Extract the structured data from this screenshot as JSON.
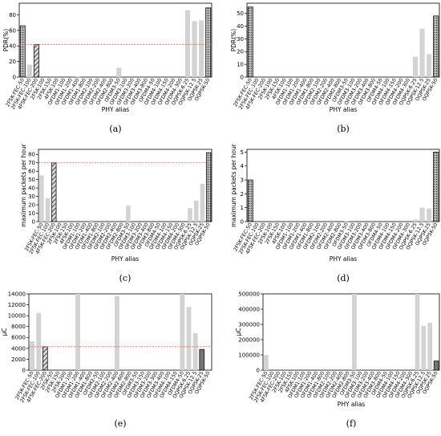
{
  "chart_data": [
    {
      "type": "bar",
      "panel_label": "(a)",
      "xlabel": "PHY alias",
      "ylabel": "PDR(%)",
      "ylim": [
        0,
        95
      ],
      "yticks": [
        0,
        20,
        40,
        60,
        80
      ],
      "yticklabels": [
        "0",
        "20",
        "40",
        "60",
        "80"
      ],
      "exponent_label": "",
      "reference_line": 42,
      "reference_color": "#e8604c",
      "categories": [
        "2FSK-FEC-50",
        "2FSK-FEC-100",
        "4FSK-FEC-200",
        "2FSK-100",
        "2FSK-150",
        "4FSK-100",
        "OFDM1-100",
        "OFDM1-200",
        "OFDM1-400",
        "OFDM1-800",
        "OFDM2-100",
        "OFDM2-200",
        "OFDM2-400",
        "OFDM2-800",
        "OFDM3-50",
        "OFDM3-100",
        "OFDM3-200",
        "OFDM3-400",
        "OFDM3-800",
        "OFDM4-50",
        "OFDM4-100",
        "OFDM4-150",
        "OFDM4-200",
        "OFDM4-300",
        "OQPSK-6.25",
        "OQPSK-12.5",
        "OQPSK-25",
        "OQPSK-50"
      ],
      "values": [
        66,
        16,
        42,
        0,
        0,
        0,
        0,
        0,
        1,
        0,
        0,
        0,
        0,
        0,
        12,
        0,
        0,
        0,
        0,
        0,
        0,
        0,
        0,
        0,
        86,
        72,
        73,
        89
      ],
      "styles": [
        "dots",
        "plain",
        "hatch",
        "plain",
        "plain",
        "plain",
        "plain",
        "plain",
        "plain",
        "plain",
        "plain",
        "plain",
        "plain",
        "plain",
        "plain",
        "plain",
        "plain",
        "plain",
        "plain",
        "plain",
        "plain",
        "plain",
        "plain",
        "plain",
        "plain",
        "plain",
        "plain",
        "dots"
      ]
    },
    {
      "type": "bar",
      "panel_label": "(b)",
      "xlabel": "PHY alias",
      "ylabel": "PDR(%)",
      "ylim": [
        0,
        58
      ],
      "yticks": [
        0,
        10,
        20,
        30,
        40,
        50
      ],
      "yticklabels": [
        "0",
        "10",
        "20",
        "30",
        "40",
        "50"
      ],
      "exponent_label": "",
      "reference_line": null,
      "reference_color": "#e8604c",
      "categories": [
        "2FSK-FEC-50",
        "2FSK-FEC-100",
        "4FSK-FEC-200",
        "2FSK-100",
        "2FSK-150",
        "4FSK-100",
        "OFDM1-100",
        "OFDM1-200",
        "OFDM1-400",
        "OFDM1-800",
        "OFDM2-100",
        "OFDM2-200",
        "OFDM2-400",
        "OFDM2-800",
        "OFDM3-50",
        "OFDM3-100",
        "OFDM3-200",
        "OFDM3-400",
        "OFDM3-800",
        "OFDM4-50",
        "OFDM4-100",
        "OFDM4-150",
        "OFDM4-200",
        "OFDM4-300",
        "OQPSK-6.25",
        "OQPSK-12.5",
        "OQPSK-25",
        "OQPSK-50"
      ],
      "values": [
        55,
        0,
        0,
        0,
        0,
        0,
        0,
        0,
        0,
        0,
        0,
        0,
        0,
        0,
        0,
        0,
        0,
        0,
        0,
        0,
        0,
        0,
        0,
        0,
        16,
        38,
        18,
        48
      ],
      "styles": [
        "dots",
        "plain",
        "plain",
        "plain",
        "plain",
        "plain",
        "plain",
        "plain",
        "plain",
        "plain",
        "plain",
        "plain",
        "plain",
        "plain",
        "plain",
        "plain",
        "plain",
        "plain",
        "plain",
        "plain",
        "plain",
        "plain",
        "plain",
        "plain",
        "plain",
        "plain",
        "plain",
        "dots"
      ]
    },
    {
      "type": "bar",
      "panel_label": "(c)",
      "xlabel": "PHY alias",
      "ylabel": "maximum packets per hour",
      "ylim": [
        0,
        86
      ],
      "yticks": [
        0,
        10,
        20,
        30,
        40,
        50,
        60,
        70,
        80
      ],
      "yticklabels": [
        "0",
        "10",
        "20",
        "30",
        "40",
        "50",
        "60",
        "70",
        "80"
      ],
      "exponent_label": "",
      "reference_line": 70,
      "reference_color": "#e8604c",
      "categories": [
        "2FSK-FEC-50",
        "2FSK-FEC-100",
        "4FSK-FEC-200",
        "2FSK-100",
        "2FSK-150",
        "4FSK-100",
        "OFDM1-100",
        "OFDM1-200",
        "OFDM1-400",
        "OFDM1-800",
        "OFDM2-100",
        "OFDM2-200",
        "OFDM2-400",
        "OFDM2-800",
        "OFDM3-50",
        "OFDM3-100",
        "OFDM3-200",
        "OFDM3-400",
        "OFDM3-800",
        "OFDM4-50",
        "OFDM4-100",
        "OFDM4-150",
        "OFDM4-200",
        "OFDM4-300",
        "OQPSK-6.25",
        "OQPSK-12.5",
        "OQPSK-25",
        "OQPSK-50"
      ],
      "values": [
        55,
        28,
        70,
        0,
        0,
        0,
        0,
        0,
        2,
        0,
        0,
        0,
        0,
        0,
        19,
        0,
        0,
        0,
        0,
        0,
        0,
        0,
        0,
        0,
        16,
        25,
        45,
        82
      ],
      "styles": [
        "plain",
        "plain",
        "hatch",
        "plain",
        "plain",
        "plain",
        "plain",
        "plain",
        "plain",
        "plain",
        "plain",
        "plain",
        "plain",
        "plain",
        "plain",
        "plain",
        "plain",
        "plain",
        "plain",
        "plain",
        "plain",
        "plain",
        "plain",
        "plain",
        "plain",
        "plain",
        "plain",
        "dots"
      ]
    },
    {
      "type": "bar",
      "panel_label": "(d)",
      "xlabel": "PHY alias",
      "ylabel": "maximum packets per hour",
      "ylim": [
        0,
        5.2
      ],
      "yticks": [
        0,
        1,
        2,
        3,
        4,
        5
      ],
      "yticklabels": [
        "0",
        "1",
        "2",
        "3",
        "4",
        "5"
      ],
      "exponent_label": "",
      "reference_line": null,
      "reference_color": "#e8604c",
      "categories": [
        "2FSK-FEC-50",
        "2FSK-FEC-100",
        "4FSK-FEC-200",
        "2FSK-100",
        "2FSK-150",
        "4FSK-100",
        "OFDM1-100",
        "OFDM1-200",
        "OFDM1-400",
        "OFDM1-800",
        "OFDM2-100",
        "OFDM2-200",
        "OFDM2-400",
        "OFDM2-800",
        "OFDM3-50",
        "OFDM3-100",
        "OFDM3-200",
        "OFDM3-400",
        "OFDM3-800",
        "OFDM4-50",
        "OFDM4-100",
        "OFDM4-150",
        "OFDM4-200",
        "OFDM4-300",
        "OQPSK-6.25",
        "OQPSK-12.5",
        "OQPSK-25",
        "OQPSK-50"
      ],
      "values": [
        3,
        0,
        0,
        0,
        0,
        0,
        0,
        0,
        0,
        0,
        0,
        0,
        0,
        0,
        0.05,
        0,
        0,
        0,
        0,
        0,
        0,
        0,
        0,
        0,
        0.15,
        1.0,
        0.95,
        5
      ],
      "styles": [
        "dots",
        "plain",
        "plain",
        "plain",
        "plain",
        "plain",
        "plain",
        "plain",
        "plain",
        "plain",
        "plain",
        "plain",
        "plain",
        "plain",
        "plain",
        "plain",
        "plain",
        "plain",
        "plain",
        "plain",
        "plain",
        "plain",
        "plain",
        "plain",
        "plain",
        "plain",
        "plain",
        "dots"
      ]
    },
    {
      "type": "bar",
      "panel_label": "(e)",
      "xlabel": "",
      "ylabel": "μC",
      "ylim": [
        0,
        14000
      ],
      "yticks": [
        0,
        2000,
        4000,
        6000,
        8000,
        10000,
        12000,
        14000
      ],
      "yticklabels": [
        "0",
        "2000",
        "4000",
        "6000",
        "8000",
        "10000",
        "12000",
        "14000"
      ],
      "exponent_label": "",
      "reference_line": 4300,
      "reference_color": "#e8604c",
      "categories": [
        "2FSK-FEC-50",
        "2FSK-FEC-100",
        "4FSK-FEC-200",
        "2FSK-100",
        "2FSK-150",
        "4FSK-100",
        "OFDM1-100",
        "OFDM1-200",
        "OFDM1-400",
        "OFDM1-800",
        "OFDM2-100",
        "OFDM2-200",
        "OFDM2-400",
        "OFDM2-800",
        "OFDM3-50",
        "OFDM3-100",
        "OFDM3-200",
        "OFDM3-400",
        "OFDM3-800",
        "OFDM4-50",
        "OFDM4-100",
        "OFDM4-150",
        "OFDM4-200",
        "OFDM4-300",
        "OQPSK-6.25",
        "OQPSK-12.5",
        "OQPSK-25",
        "OQPSK-50"
      ],
      "values": [
        5300,
        10500,
        4300,
        0,
        0,
        0,
        0,
        14000,
        0,
        0,
        0,
        0,
        0,
        13600,
        0,
        0,
        0,
        0,
        0,
        0,
        0,
        0,
        0,
        14000,
        11600,
        6800,
        3800,
        0
      ],
      "styles": [
        "plain",
        "plain",
        "hatch",
        "plain",
        "plain",
        "plain",
        "plain",
        "plain",
        "plain",
        "plain",
        "plain",
        "plain",
        "plain",
        "plain",
        "plain",
        "plain",
        "plain",
        "plain",
        "plain",
        "plain",
        "plain",
        "plain",
        "plain",
        "plain",
        "plain",
        "plain",
        "dark",
        "plain"
      ],
      "category_labels": [
        "2FSK-FEC-50",
        "2FSK-FEC-100",
        "4FSK-FEC-200",
        "2FSK-50",
        "2FSK-150",
        "2FSK-200",
        "OFDM1-100",
        "OFDM1-200",
        "OFDM1-400",
        "OFDM1-800",
        "OFDM2-50",
        "OFDM2-100",
        "OFDM2-200",
        "OFDM2-400",
        "OFDM2-600",
        "OFDM2-800",
        "OFDM3-50",
        "OFDM3-150",
        "OFDM3-200",
        "OFDM3-300",
        "OFDM3-400",
        "OFDM4-100",
        "OFDM4-150",
        "OFDM4-50",
        "OQPSK-6.25",
        "OQPSK-12.5",
        "OQPSK-25",
        "OQPSK-50"
      ]
    },
    {
      "type": "bar",
      "panel_label": "(f)",
      "xlabel": "PHY alias",
      "ylabel": "μC",
      "ylim": [
        0,
        500000
      ],
      "yticks": [
        0,
        100000,
        200000,
        300000,
        400000,
        500000
      ],
      "yticklabels": [
        "0",
        "100000",
        "200000",
        "300000",
        "400000",
        "500000"
      ],
      "exponent_label": "",
      "reference_line": null,
      "reference_color": "#e8604c",
      "categories": [
        "2FSK-FEC-50",
        "2FSK-FEC-100",
        "4FSK-FEC-200",
        "2FSK-100",
        "2FSK-150",
        "4FSK-100",
        "OFDM1-100",
        "OFDM1-200",
        "OFDM1-400",
        "OFDM1-800",
        "OFDM2-100",
        "OFDM2-200",
        "OFDM2-400",
        "OFDM2-800",
        "OFDM3-50",
        "OFDM3-100",
        "OFDM3-200",
        "OFDM3-400",
        "OFDM3-800",
        "OFDM4-50",
        "OFDM4-100",
        "OFDM4-150",
        "OFDM4-200",
        "OFDM4-300",
        "OQPSK-6.25",
        "OQPSK-12.5",
        "OQPSK-25",
        "OQPSK-50"
      ],
      "values": [
        100000,
        0,
        0,
        0,
        0,
        0,
        0,
        0,
        0,
        0,
        0,
        0,
        0,
        0,
        500000,
        0,
        0,
        0,
        0,
        0,
        0,
        0,
        0,
        0,
        500000,
        290000,
        310000,
        60000
      ],
      "styles": [
        "plain",
        "plain",
        "plain",
        "plain",
        "plain",
        "plain",
        "plain",
        "plain",
        "plain",
        "plain",
        "plain",
        "plain",
        "plain",
        "plain",
        "plain",
        "plain",
        "plain",
        "plain",
        "plain",
        "plain",
        "plain",
        "plain",
        "plain",
        "plain",
        "plain",
        "plain",
        "plain",
        "dark"
      ]
    }
  ]
}
